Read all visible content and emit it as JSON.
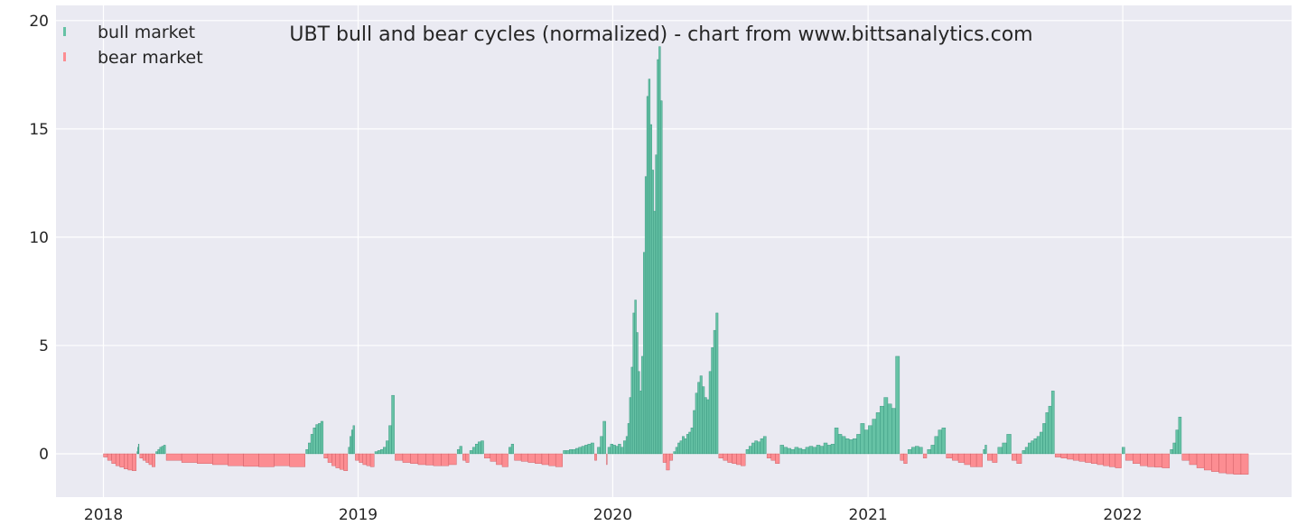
{
  "chart_data": {
    "type": "bar",
    "title": "UBT bull and bear cycles (normalized)  - chart from www.bittsanalytics.com",
    "xlabel": "",
    "ylabel": "",
    "xlim": [
      "2017-10-25",
      "2022-08-31"
    ],
    "ylim": [
      -2,
      20.7
    ],
    "x_ticks": [
      "2018",
      "2019",
      "2020",
      "2021",
      "2022"
    ],
    "y_ticks": [
      "0",
      "5",
      "10",
      "15",
      "20"
    ],
    "grid": true,
    "legend": {
      "position": "top-left",
      "entries": [
        {
          "label": "bull market",
          "color": "#66c2a5"
        },
        {
          "label": "bear market",
          "color": "#fc8d92"
        }
      ]
    },
    "colors": {
      "background": "#eaeaf2",
      "grid": "#ffffff",
      "bull": "#66c2a5",
      "bull_edge": "#2f8f78",
      "bear": "#fc8d92",
      "bear_edge": "#c7555c"
    },
    "series": [
      {
        "name": "bull market",
        "segments": [
          {
            "start": "2018-02-18",
            "end": "2018-02-21",
            "values": [
              0.1,
              0.3,
              0.45
            ]
          },
          {
            "start": "2018-03-17",
            "end": "2018-03-31",
            "values": [
              0.1,
              0.2,
              0.3,
              0.35,
              0.4
            ]
          },
          {
            "start": "2018-10-18",
            "end": "2018-11-12",
            "values": [
              0.2,
              0.5,
              0.9,
              1.2,
              1.35,
              1.4,
              1.5
            ]
          },
          {
            "start": "2018-12-18",
            "end": "2018-12-27",
            "values": [
              0.3,
              0.8,
              1.1,
              1.3
            ]
          },
          {
            "start": "2019-01-25",
            "end": "2019-02-22",
            "values": [
              0.1,
              0.15,
              0.2,
              0.3,
              0.6,
              1.3,
              2.7
            ]
          },
          {
            "start": "2019-05-23",
            "end": "2019-05-30",
            "values": [
              0.2,
              0.35
            ]
          },
          {
            "start": "2019-06-10",
            "end": "2019-06-30",
            "values": [
              0.15,
              0.3,
              0.45,
              0.55,
              0.6
            ]
          },
          {
            "start": "2019-08-05",
            "end": "2019-08-12",
            "values": [
              0.3,
              0.45
            ]
          },
          {
            "start": "2019-10-22",
            "end": "2019-12-05",
            "values": [
              0.15,
              0.15,
              0.2,
              0.2,
              0.25,
              0.3,
              0.35,
              0.4,
              0.45,
              0.5
            ]
          },
          {
            "start": "2019-12-10",
            "end": "2019-12-22",
            "values": [
              0.3,
              0.8,
              1.5
            ]
          },
          {
            "start": "2019-12-25",
            "end": "2020-01-20",
            "values": [
              0.3,
              0.45,
              0.4,
              0.35,
              0.45,
              0.3,
              0.6
            ]
          },
          {
            "start": "2020-01-20",
            "end": "2020-03-12",
            "values": [
              0.8,
              1.4,
              2.6,
              4.0,
              6.5,
              7.1,
              5.6,
              3.8,
              2.9,
              4.5,
              9.3,
              12.8,
              16.5,
              17.3,
              15.2,
              13.1,
              11.2,
              13.8,
              18.2,
              18.8,
              16.3
            ]
          },
          {
            "start": "2020-03-28",
            "end": "2020-04-22",
            "values": [
              0.1,
              0.3,
              0.5,
              0.6,
              0.8,
              0.7,
              0.9,
              1.0
            ]
          },
          {
            "start": "2020-04-22",
            "end": "2020-05-31",
            "values": [
              1.2,
              2.0,
              2.8,
              3.3,
              3.6,
              3.1,
              2.6,
              2.5,
              3.8,
              4.9,
              5.7,
              6.5
            ]
          },
          {
            "start": "2020-07-10",
            "end": "2020-08-08",
            "values": [
              0.2,
              0.35,
              0.5,
              0.6,
              0.55,
              0.7,
              0.8
            ]
          },
          {
            "start": "2020-08-28",
            "end": "2020-12-10",
            "values": [
              0.4,
              0.3,
              0.25,
              0.2,
              0.3,
              0.25,
              0.2,
              0.3,
              0.35,
              0.3,
              0.4,
              0.35,
              0.5,
              0.4,
              0.45,
              1.2,
              0.9,
              0.8,
              0.7,
              0.65
            ]
          },
          {
            "start": "2020-12-10",
            "end": "2021-02-15",
            "values": [
              0.7,
              0.9,
              1.4,
              1.1,
              1.3,
              1.6,
              1.9,
              2.2,
              2.6,
              2.3,
              2.1,
              4.5
            ]
          },
          {
            "start": "2021-02-27",
            "end": "2021-03-20",
            "values": [
              0.2,
              0.3,
              0.35,
              0.3
            ]
          },
          {
            "start": "2021-03-27",
            "end": "2021-04-22",
            "values": [
              0.2,
              0.4,
              0.8,
              1.1,
              1.2
            ]
          },
          {
            "start": "2021-06-15",
            "end": "2021-06-20",
            "values": [
              0.2,
              0.4
            ]
          },
          {
            "start": "2021-07-06",
            "end": "2021-07-25",
            "values": [
              0.3,
              0.5,
              0.9
            ]
          },
          {
            "start": "2021-08-10",
            "end": "2021-09-25",
            "values": [
              0.15,
              0.3,
              0.5,
              0.6,
              0.7,
              0.8,
              1.0,
              1.4,
              1.9,
              2.2,
              2.9
            ]
          },
          {
            "start": "2021-12-31",
            "end": "2022-01-04",
            "values": [
              0.3
            ]
          },
          {
            "start": "2022-03-10",
            "end": "2022-03-26",
            "values": [
              0.2,
              0.5,
              1.1,
              1.7
            ]
          }
        ]
      },
      {
        "name": "bear market",
        "segments": [
          {
            "start": "2018-01-01",
            "end": "2018-02-17",
            "values": [
              -0.15,
              -0.3,
              -0.45,
              -0.55,
              -0.62,
              -0.7,
              -0.75,
              -0.78
            ]
          },
          {
            "start": "2018-02-22",
            "end": "2018-03-16",
            "values": [
              -0.2,
              -0.3,
              -0.4,
              -0.5,
              -0.6
            ]
          },
          {
            "start": "2018-04-01",
            "end": "2018-10-17",
            "values": [
              -0.3,
              -0.4,
              -0.45,
              -0.5,
              -0.55,
              -0.58,
              -0.6,
              -0.55,
              -0.6
            ]
          },
          {
            "start": "2018-11-13",
            "end": "2018-12-17",
            "values": [
              -0.2,
              -0.4,
              -0.55,
              -0.65,
              -0.72,
              -0.78
            ]
          },
          {
            "start": "2018-12-28",
            "end": "2019-01-24",
            "values": [
              -0.3,
              -0.4,
              -0.5,
              -0.55,
              -0.6
            ]
          },
          {
            "start": "2019-02-23",
            "end": "2019-05-22",
            "values": [
              -0.3,
              -0.4,
              -0.45,
              -0.5,
              -0.52,
              -0.55,
              -0.55,
              -0.5
            ]
          },
          {
            "start": "2019-05-31",
            "end": "2019-06-09",
            "values": [
              -0.3,
              -0.4
            ]
          },
          {
            "start": "2019-07-01",
            "end": "2019-08-04",
            "values": [
              -0.2,
              -0.35,
              -0.5,
              -0.6
            ]
          },
          {
            "start": "2019-08-13",
            "end": "2019-10-21",
            "values": [
              -0.3,
              -0.35,
              -0.4,
              -0.45,
              -0.5,
              -0.55,
              -0.6
            ]
          },
          {
            "start": "2019-12-06",
            "end": "2019-12-09",
            "values": [
              -0.3
            ]
          },
          {
            "start": "2019-12-23",
            "end": "2019-12-24",
            "values": [
              -0.5
            ]
          },
          {
            "start": "2020-03-13",
            "end": "2020-03-27",
            "values": [
              -0.4,
              -0.75,
              -0.3
            ]
          },
          {
            "start": "2020-06-01",
            "end": "2020-07-09",
            "values": [
              -0.2,
              -0.3,
              -0.4,
              -0.45,
              -0.5,
              -0.55
            ]
          },
          {
            "start": "2020-08-09",
            "end": "2020-08-27",
            "values": [
              -0.2,
              -0.3,
              -0.45
            ]
          },
          {
            "start": "2021-02-16",
            "end": "2021-02-26",
            "values": [
              -0.3,
              -0.45
            ]
          },
          {
            "start": "2021-03-21",
            "end": "2021-03-26",
            "values": [
              -0.2
            ]
          },
          {
            "start": "2021-04-23",
            "end": "2021-06-14",
            "values": [
              -0.2,
              -0.3,
              -0.4,
              -0.5,
              -0.6,
              -0.6
            ]
          },
          {
            "start": "2021-06-21",
            "end": "2021-07-05",
            "values": [
              -0.3,
              -0.4
            ]
          },
          {
            "start": "2021-07-26",
            "end": "2021-08-09",
            "values": [
              -0.3,
              -0.45
            ]
          },
          {
            "start": "2021-09-26",
            "end": "2021-12-30",
            "values": [
              -0.15,
              -0.2,
              -0.25,
              -0.3,
              -0.35,
              -0.4,
              -0.45,
              -0.5,
              -0.55,
              -0.6,
              -0.65
            ]
          },
          {
            "start": "2022-01-05",
            "end": "2022-03-09",
            "values": [
              -0.3,
              -0.45,
              -0.55,
              -0.6,
              -0.62,
              -0.65
            ]
          },
          {
            "start": "2022-03-27",
            "end": "2022-06-30",
            "values": [
              -0.3,
              -0.5,
              -0.65,
              -0.75,
              -0.82,
              -0.88,
              -0.92,
              -0.95,
              -0.95
            ]
          }
        ]
      }
    ]
  }
}
